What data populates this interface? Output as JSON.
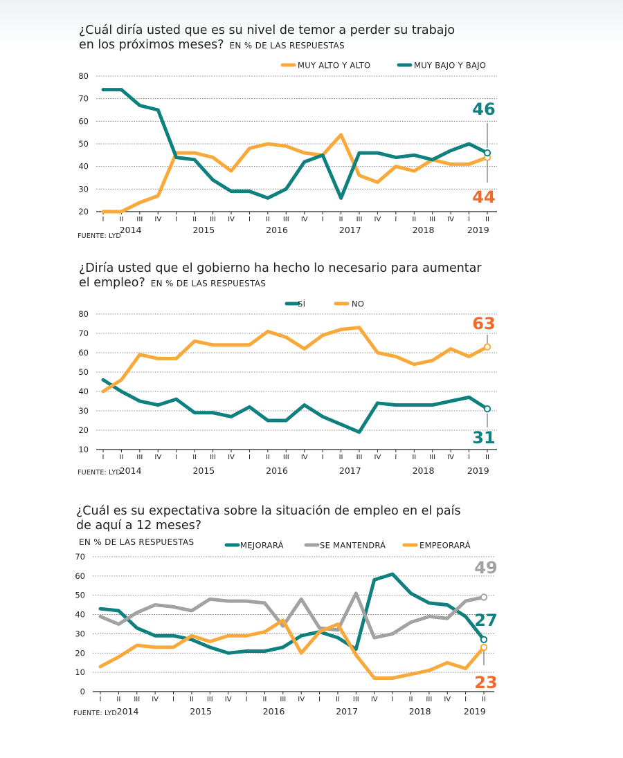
{
  "colors": {
    "orange": "#f8a93a",
    "teal": "#0f8080",
    "gray": "#a2a2a2",
    "big_orange": "#ef6a2c"
  },
  "chart_data": [
    {
      "type": "line",
      "title_line_1": "¿Cuál diría usted que es su nivel de temor a perder su trabajo",
      "title_line_2": "en los próximos meses?",
      "unit": "EN % DE LAS RESPUESTAS",
      "source": "FUENTE: LYD",
      "ylim": [
        20,
        80
      ],
      "yticks": [
        20,
        30,
        40,
        50,
        60,
        70,
        80
      ],
      "x": [
        "I",
        "II",
        "III",
        "IV",
        "I",
        "II",
        "III",
        "IV",
        "I",
        "II",
        "III",
        "IV",
        "I",
        "II",
        "III",
        "IV",
        "I",
        "II",
        "III",
        "IV",
        "I",
        "II"
      ],
      "years": [
        "2014",
        "2015",
        "2016",
        "2017",
        "2018",
        "2019"
      ],
      "series": [
        {
          "name": "MUY ALTO Y ALTO",
          "color": "orange",
          "values": [
            20,
            20,
            24,
            27,
            46,
            46,
            44,
            38,
            48,
            50,
            49,
            46,
            45,
            54,
            36,
            33,
            40,
            38,
            43,
            41,
            41,
            44
          ],
          "end_label": "44",
          "end_label_color": "big_orange"
        },
        {
          "name": "MUY BAJO Y BAJO",
          "color": "teal",
          "values": [
            74,
            74,
            67,
            65,
            44,
            43,
            34,
            29,
            29,
            26,
            30,
            42,
            45,
            26,
            46,
            46,
            44,
            45,
            43,
            47,
            50,
            46
          ],
          "end_label": "46",
          "end_label_color": "teal"
        }
      ]
    },
    {
      "type": "line",
      "title_line_1": "¿Diría usted que el gobierno ha hecho lo necesario para aumentar",
      "title_line_2": "el empleo?",
      "unit": "EN % DE LAS RESPUESTAS",
      "source": "FUENTE: LYD",
      "ylim": [
        10,
        80
      ],
      "yticks": [
        10,
        20,
        30,
        40,
        50,
        60,
        70,
        80
      ],
      "x": [
        "I",
        "II",
        "III",
        "IV",
        "I",
        "II",
        "III",
        "IV",
        "I",
        "II",
        "III",
        "IV",
        "I",
        "II",
        "III",
        "IV",
        "I",
        "II",
        "III",
        "IV",
        "I",
        "II"
      ],
      "years": [
        "2014",
        "2015",
        "2016",
        "2017",
        "2018",
        "2019"
      ],
      "series": [
        {
          "name": "SÍ",
          "color": "teal",
          "values": [
            46,
            40,
            35,
            33,
            36,
            29,
            29,
            27,
            32,
            25,
            25,
            33,
            27,
            23,
            19,
            34,
            33,
            33,
            33,
            35,
            37,
            31
          ],
          "end_label": "31",
          "end_label_color": "teal"
        },
        {
          "name": "NO",
          "color": "orange",
          "values": [
            40,
            46,
            59,
            57,
            57,
            66,
            64,
            64,
            64,
            71,
            68,
            62,
            69,
            72,
            73,
            60,
            58,
            54,
            56,
            62,
            58,
            63
          ],
          "end_label": "63",
          "end_label_color": "big_orange"
        }
      ]
    },
    {
      "type": "line",
      "title_line_1": "¿Cuál es su expectativa sobre la situación de empleo en el país",
      "title_line_2": "de aquí a 12 meses?",
      "unit": "EN % DE LAS RESPUESTAS",
      "source": "FUENTE: LYD",
      "ylim": [
        0,
        70
      ],
      "yticks": [
        0,
        10,
        20,
        30,
        40,
        50,
        60,
        70
      ],
      "x": [
        "I",
        "II",
        "III",
        "IV",
        "I",
        "II",
        "III",
        "IV",
        "I",
        "II",
        "III",
        "IV",
        "I",
        "II",
        "III",
        "IV",
        "I",
        "II",
        "III",
        "IV",
        "I",
        "II"
      ],
      "years": [
        "2014",
        "2015",
        "2016",
        "2017",
        "2018",
        "2019"
      ],
      "series": [
        {
          "name": "MEJORARÁ",
          "color": "teal",
          "values": [
            43,
            42,
            33,
            29,
            29,
            27,
            23,
            20,
            21,
            21,
            23,
            29,
            31,
            28,
            22,
            58,
            61,
            51,
            46,
            45,
            39,
            27
          ],
          "end_label": "27",
          "end_label_color": "teal"
        },
        {
          "name": "SE MANTENDRÁ",
          "color": "gray",
          "values": [
            39,
            35,
            41,
            45,
            44,
            42,
            48,
            47,
            47,
            46,
            34,
            48,
            33,
            32,
            51,
            28,
            30,
            36,
            39,
            38,
            47,
            49
          ],
          "end_label": "49",
          "end_label_color": "gray"
        },
        {
          "name": "EMPEORARÁ",
          "color": "orange",
          "values": [
            13,
            18,
            24,
            23,
            23,
            29,
            26,
            29,
            29,
            31,
            37,
            20,
            31,
            35,
            19,
            7,
            7,
            9,
            11,
            15,
            12,
            23
          ],
          "end_label": "23",
          "end_label_color": "big_orange"
        }
      ]
    }
  ]
}
